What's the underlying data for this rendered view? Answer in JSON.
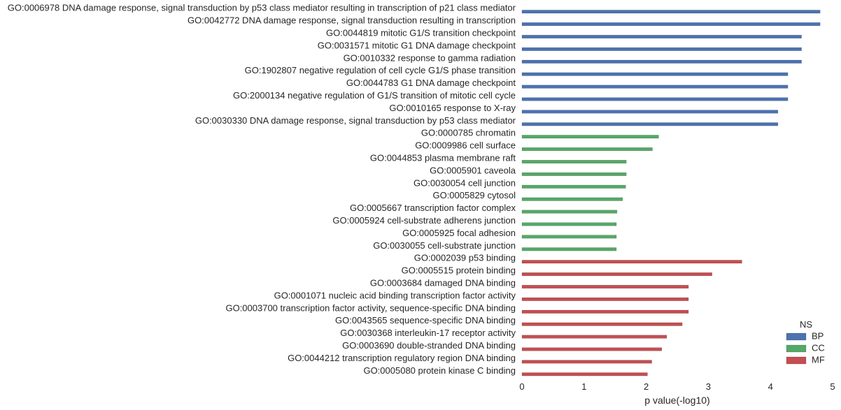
{
  "chart_data": {
    "type": "bar",
    "orientation": "horizontal",
    "title": "",
    "xlabel": "p value(-log10)",
    "ylabel": "",
    "xlim": [
      0,
      5
    ],
    "xticks": [
      "0",
      "1",
      "2",
      "3",
      "4",
      "5"
    ],
    "grid": false,
    "legend": {
      "title": "NS",
      "position": "bottom-right",
      "entries": [
        {
          "name": "BP",
          "color": "#4c72b0"
        },
        {
          "name": "CC",
          "color": "#55a868"
        },
        {
          "name": "MF",
          "color": "#c44e52"
        }
      ]
    },
    "categories": [
      {
        "label": "GO:0006978 DNA damage response, signal transduction by p53 class mediator resulting in transcription of p21 class mediator",
        "value": 4.8,
        "ns": "BP"
      },
      {
        "label": "GO:0042772 DNA damage response, signal transduction resulting in transcription",
        "value": 4.8,
        "ns": "BP"
      },
      {
        "label": "GO:0044819 mitotic G1/S transition checkpoint",
        "value": 4.5,
        "ns": "BP"
      },
      {
        "label": "GO:0031571 mitotic G1 DNA damage checkpoint",
        "value": 4.5,
        "ns": "BP"
      },
      {
        "label": "GO:0010332 response to gamma radiation",
        "value": 4.5,
        "ns": "BP"
      },
      {
        "label": "GO:1902807 negative regulation of cell cycle G1/S phase transition",
        "value": 4.28,
        "ns": "BP"
      },
      {
        "label": "GO:0044783 G1 DNA damage checkpoint",
        "value": 4.28,
        "ns": "BP"
      },
      {
        "label": "GO:2000134 negative regulation of G1/S transition of mitotic cell cycle",
        "value": 4.28,
        "ns": "BP"
      },
      {
        "label": "GO:0010165 response to X-ray",
        "value": 4.12,
        "ns": "BP"
      },
      {
        "label": "GO:0030330 DNA damage response, signal transduction by p53 class mediator",
        "value": 4.12,
        "ns": "BP"
      },
      {
        "label": "GO:0000785 chromatin",
        "value": 2.2,
        "ns": "CC"
      },
      {
        "label": "GO:0009986 cell surface",
        "value": 2.1,
        "ns": "CC"
      },
      {
        "label": "GO:0044853 plasma membrane raft",
        "value": 1.68,
        "ns": "CC"
      },
      {
        "label": "GO:0005901 caveola",
        "value": 1.68,
        "ns": "CC"
      },
      {
        "label": "GO:0030054 cell junction",
        "value": 1.67,
        "ns": "CC"
      },
      {
        "label": "GO:0005829 cytosol",
        "value": 1.62,
        "ns": "CC"
      },
      {
        "label": "GO:0005667 transcription factor complex",
        "value": 1.53,
        "ns": "CC"
      },
      {
        "label": "GO:0005924 cell-substrate adherens junction",
        "value": 1.52,
        "ns": "CC"
      },
      {
        "label": "GO:0005925 focal adhesion",
        "value": 1.52,
        "ns": "CC"
      },
      {
        "label": "GO:0030055 cell-substrate junction",
        "value": 1.52,
        "ns": "CC"
      },
      {
        "label": "GO:0002039 p53 binding",
        "value": 3.54,
        "ns": "MF"
      },
      {
        "label": "GO:0005515 protein binding",
        "value": 3.06,
        "ns": "MF"
      },
      {
        "label": "GO:0003684 damaged DNA binding",
        "value": 2.68,
        "ns": "MF"
      },
      {
        "label": "GO:0001071 nucleic acid binding transcription factor activity",
        "value": 2.68,
        "ns": "MF"
      },
      {
        "label": "GO:0003700 transcription factor activity, sequence-specific DNA binding",
        "value": 2.68,
        "ns": "MF"
      },
      {
        "label": "GO:0043565 sequence-specific DNA binding",
        "value": 2.58,
        "ns": "MF"
      },
      {
        "label": "GO:0030368 interleukin-17 receptor activity",
        "value": 2.33,
        "ns": "MF"
      },
      {
        "label": "GO:0003690 double-stranded DNA binding",
        "value": 2.25,
        "ns": "MF"
      },
      {
        "label": "GO:0044212 transcription regulatory region DNA binding",
        "value": 2.09,
        "ns": "MF"
      },
      {
        "label": "GO:0005080 protein kinase C binding",
        "value": 2.02,
        "ns": "MF"
      }
    ]
  }
}
